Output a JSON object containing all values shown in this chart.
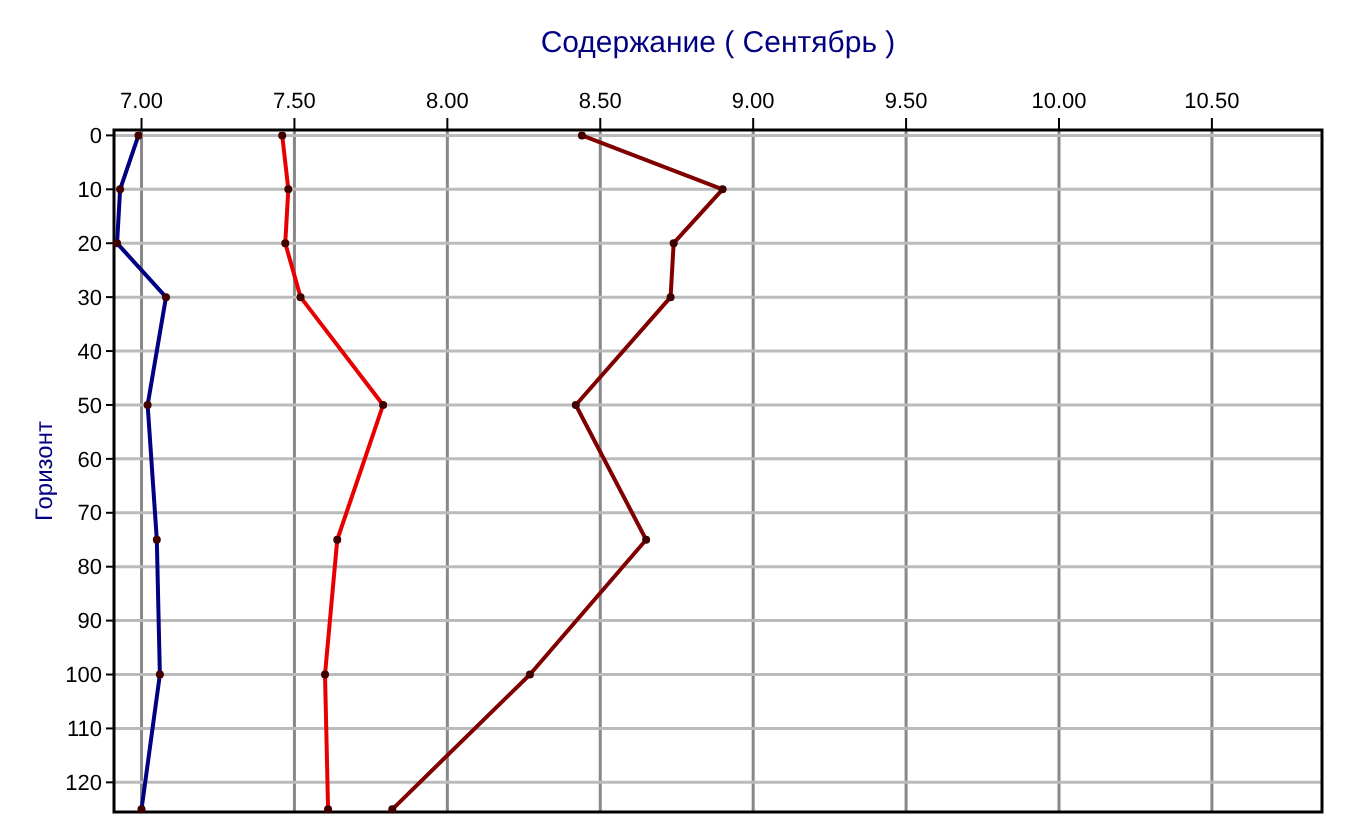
{
  "chart_data": {
    "type": "line",
    "title": "Содержание    ( Сентябрь )",
    "ylabel": "Горизонт",
    "xlim": [
      6.91,
      10.86
    ],
    "xticks": [
      {
        "value": 7,
        "label": "7.00"
      },
      {
        "value": 7.5,
        "label": "7.50"
      },
      {
        "value": 8,
        "label": "8.00"
      },
      {
        "value": 8.5,
        "label": "8.50"
      },
      {
        "value": 9,
        "label": "9.00"
      },
      {
        "value": 9.5,
        "label": "9.50"
      },
      {
        "value": 10,
        "label": "10.00"
      },
      {
        "value": 10.5,
        "label": "10.50"
      }
    ],
    "ylim": [
      125.5,
      -1
    ],
    "yticks": [
      0,
      10,
      20,
      30,
      40,
      50,
      60,
      70,
      80,
      90,
      100,
      110,
      120
    ],
    "grid": true,
    "marker": "circle",
    "line_style": "solid",
    "series": [
      {
        "color": "#000080",
        "x": [
          6.99,
          6.93,
          6.92,
          7.08,
          7.02,
          7.05,
          7.06,
          7.0
        ],
        "values": [
          0,
          10,
          20,
          30,
          50,
          75,
          100,
          125
        ]
      },
      {
        "color": "#e80000",
        "x": [
          7.46,
          7.48,
          7.47,
          7.52,
          7.79,
          7.64,
          7.6,
          7.61
        ],
        "values": [
          0,
          10,
          20,
          30,
          50,
          75,
          100,
          125
        ]
      },
      {
        "color": "#800000",
        "x": [
          8.44,
          8.9,
          8.74,
          8.73,
          8.42,
          8.65,
          8.27,
          7.82
        ],
        "values": [
          0,
          10,
          20,
          30,
          50,
          75,
          100,
          125
        ]
      }
    ]
  }
}
